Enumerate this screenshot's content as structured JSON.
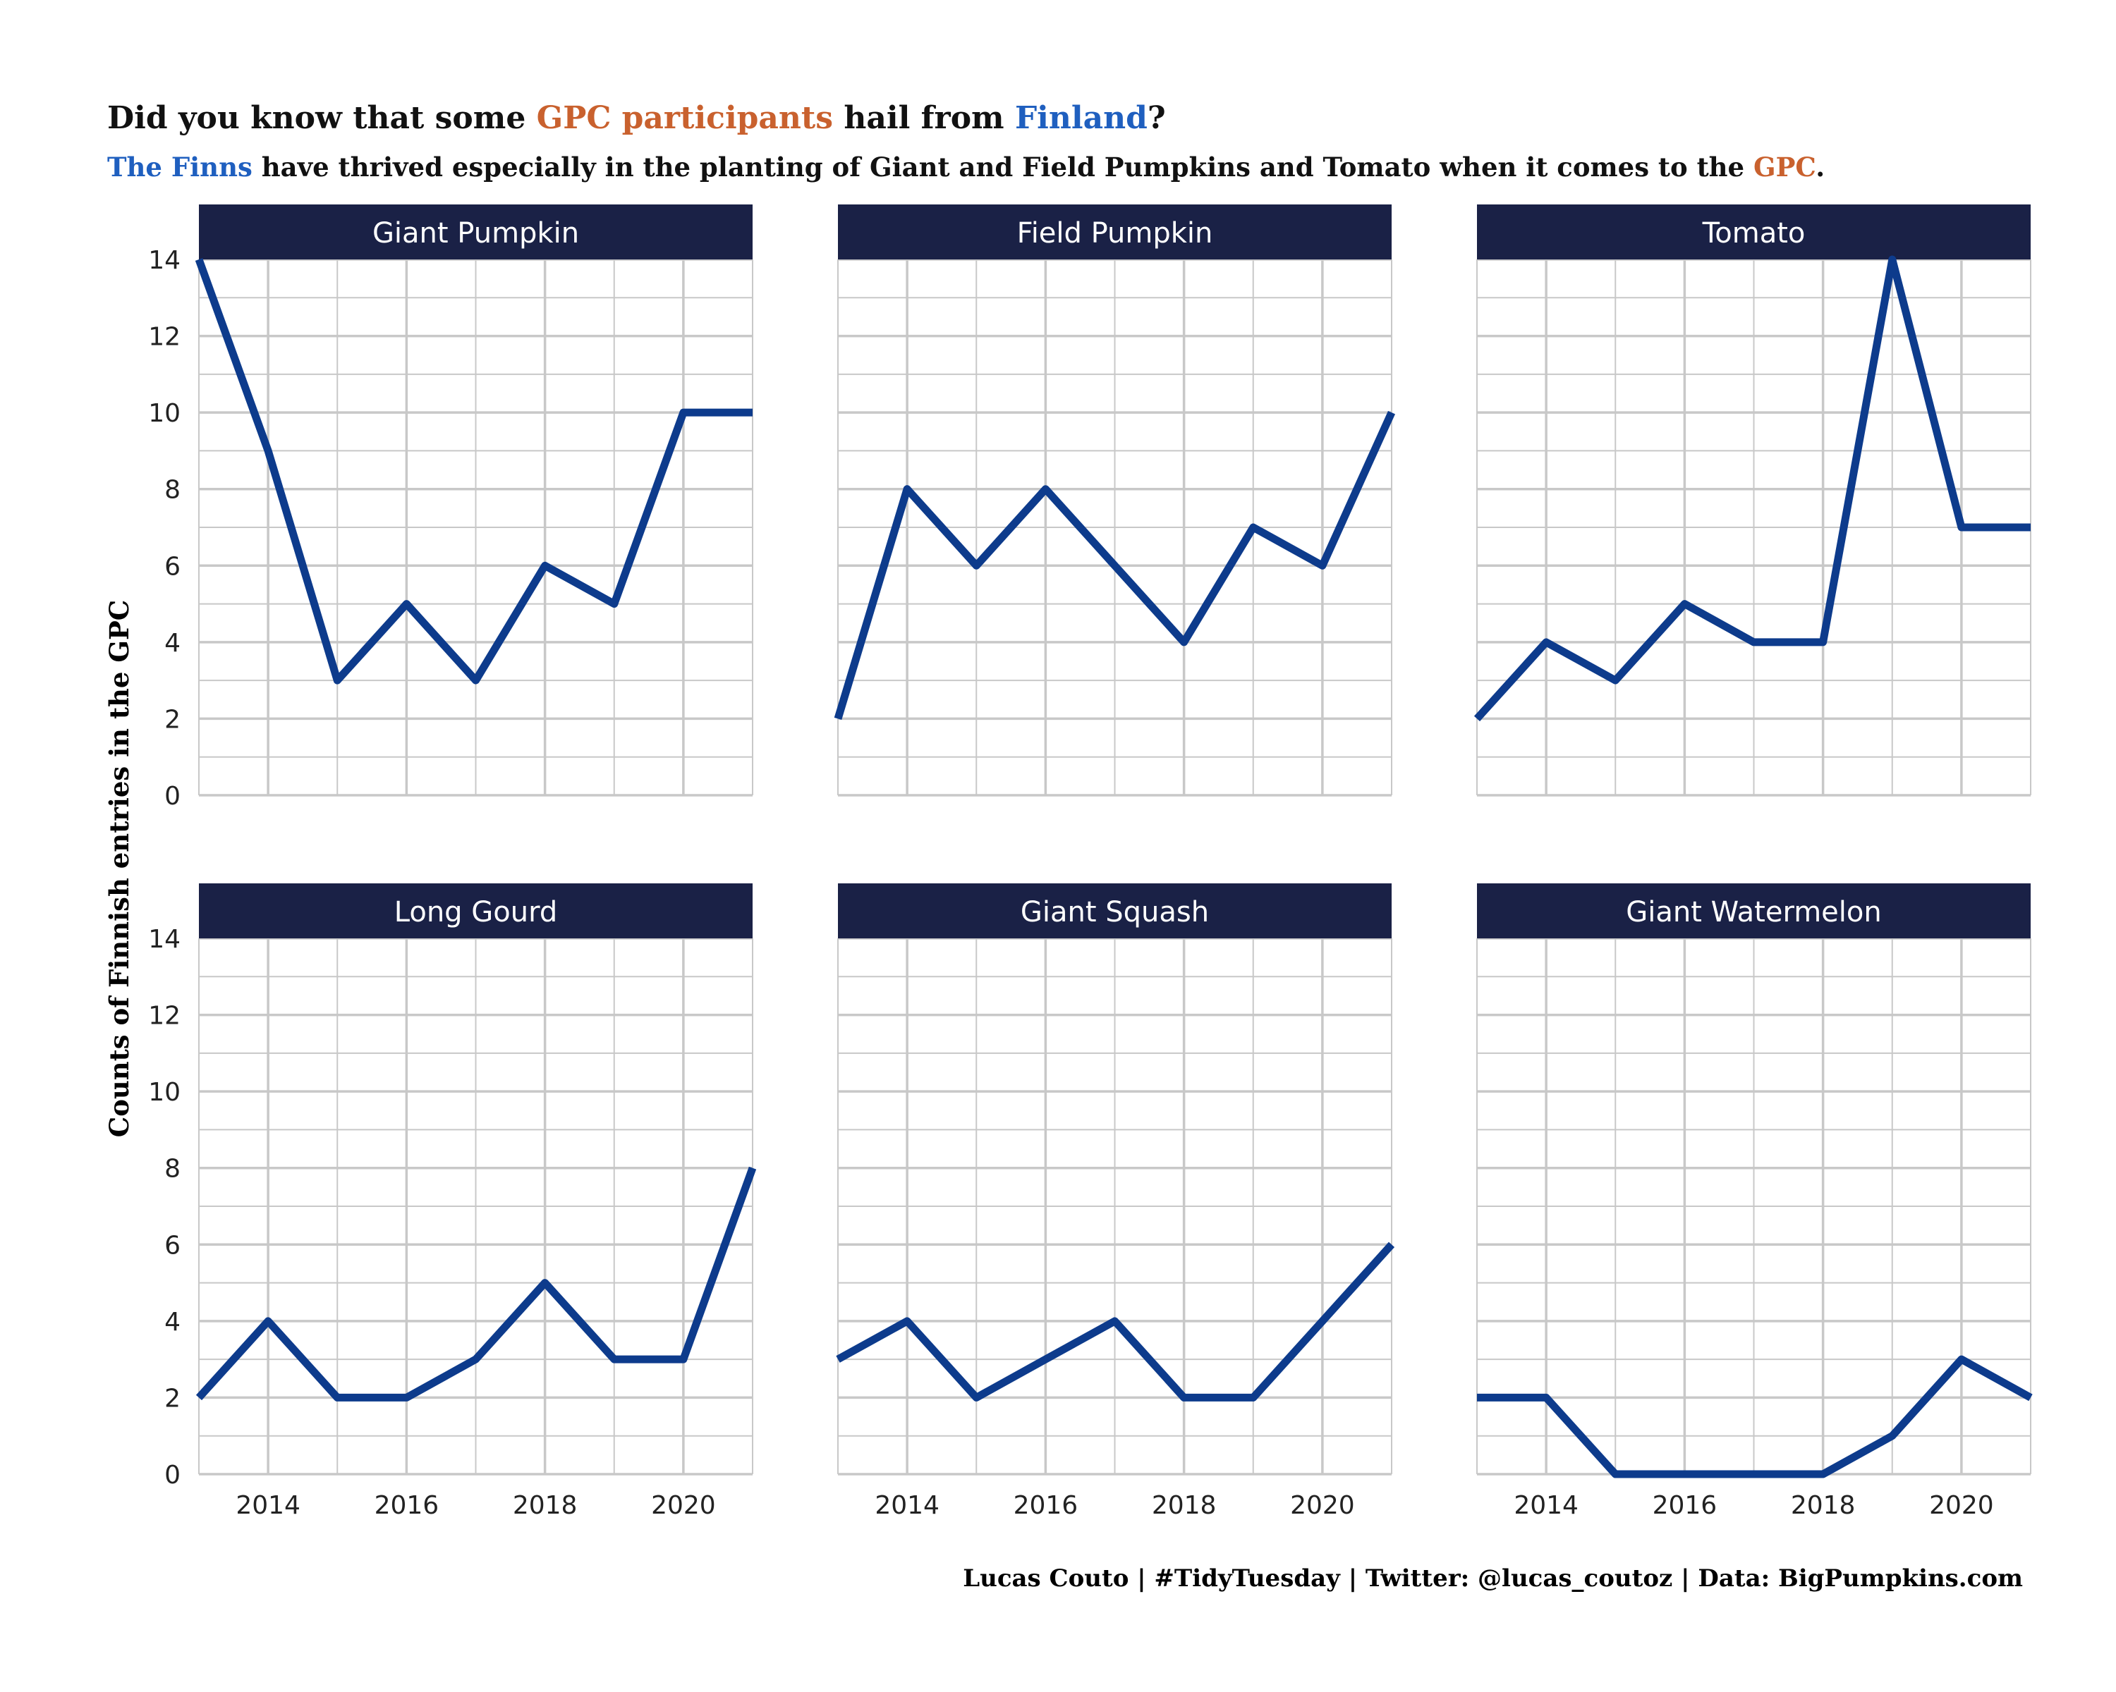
{
  "title": {
    "parts": [
      {
        "text": "Did you know that some ",
        "color": "#111111"
      },
      {
        "text": "GPC participants",
        "color": "#C9612E"
      },
      {
        "text": " hail from ",
        "color": "#111111"
      },
      {
        "text": "Finland",
        "color": "#1F5FBF"
      },
      {
        "text": "?",
        "color": "#111111"
      }
    ]
  },
  "subtitle": {
    "parts": [
      {
        "text": "The Finns",
        "color": "#1F5FBF"
      },
      {
        "text": " have thrived especially in the planting of Giant and Field Pumpkins and Tomato when it comes to the ",
        "color": "#111111"
      },
      {
        "text": "GPC",
        "color": "#C9612E"
      },
      {
        "text": ".",
        "color": "#111111"
      }
    ]
  },
  "caption": "Lucas Couto | #TidyTuesday | Twitter: @lucas_coutoz | Data: BigPumpkins.com",
  "colors": {
    "line": "#0D3B8C",
    "strip_bg": "#1A2146",
    "strip_text": "#FFFFFF",
    "grid": "#C8C8C8",
    "text": "#111111"
  },
  "chart_data": {
    "type": "line",
    "facets": "3x2",
    "ylabel": "Counts of Finnish entries in the GPC",
    "xlabel": "",
    "x": [
      2013,
      2014,
      2015,
      2016,
      2017,
      2018,
      2019,
      2020,
      2021
    ],
    "xlim": [
      2013,
      2021
    ],
    "ylim": [
      0,
      14
    ],
    "x_ticks": [
      2014,
      2016,
      2018,
      2020
    ],
    "y_ticks": [
      0,
      2,
      4,
      6,
      8,
      10,
      12,
      14
    ],
    "grid": true,
    "series": [
      {
        "name": "Giant Pumpkin",
        "values": [
          14,
          9,
          3,
          5,
          3,
          6,
          5,
          10,
          10
        ]
      },
      {
        "name": "Field Pumpkin",
        "values": [
          2,
          8,
          6,
          8,
          6,
          4,
          7,
          6,
          10
        ]
      },
      {
        "name": "Tomato",
        "values": [
          2,
          4,
          3,
          5,
          4,
          4,
          14,
          7,
          7
        ]
      },
      {
        "name": "Long Gourd",
        "values": [
          2,
          4,
          2,
          2,
          3,
          5,
          3,
          3,
          8
        ]
      },
      {
        "name": "Giant Squash",
        "values": [
          3,
          4,
          2,
          3,
          4,
          2,
          2,
          4,
          6
        ]
      },
      {
        "name": "Giant Watermelon",
        "values": [
          2,
          2,
          0,
          0,
          0,
          0,
          1,
          3,
          2
        ]
      }
    ]
  }
}
